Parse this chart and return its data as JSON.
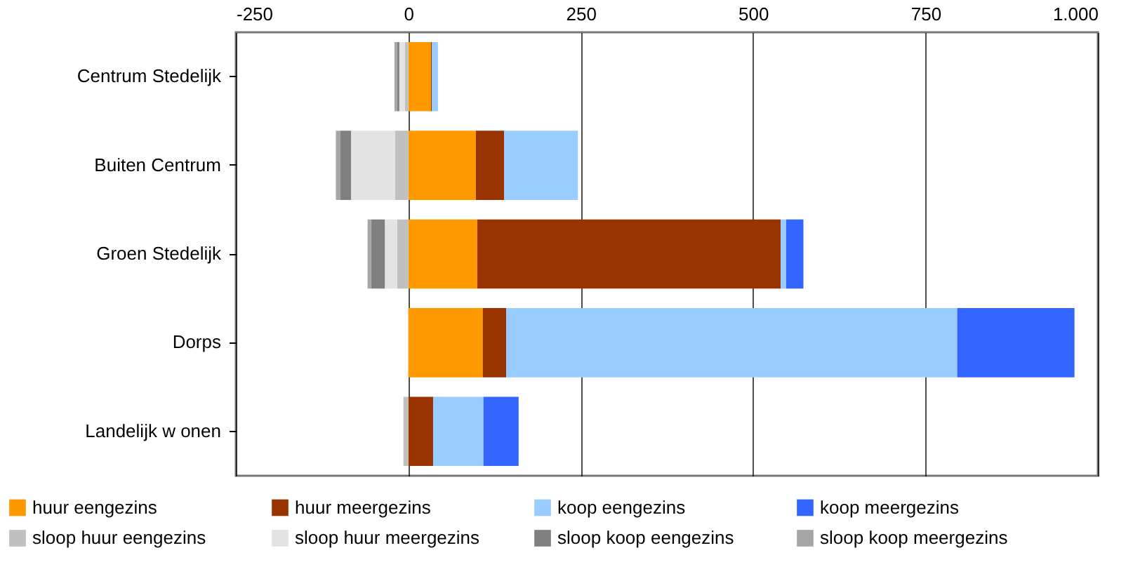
{
  "chart_data": {
    "type": "bar",
    "orientation": "horizontal",
    "stacked": true,
    "categories": [
      "Centrum Stedelijk",
      "Buiten Centrum",
      "Groen Stedelijk",
      "Dorps",
      "Landelijk w onen"
    ],
    "series": [
      {
        "name": "huur eengezins",
        "color": "#ff9900",
        "values": [
          33,
          98,
          100,
          108,
          0
        ]
      },
      {
        "name": "huur meergezins",
        "color": "#993300",
        "values": [
          1,
          41,
          440,
          34,
          36
        ]
      },
      {
        "name": "koop eengezins",
        "color": "#99ccff",
        "values": [
          9,
          107,
          8,
          654,
          73
        ]
      },
      {
        "name": "koop meergezins",
        "color": "#3366ff",
        "values": [
          0,
          0,
          25,
          170,
          51
        ]
      },
      {
        "name": "sloop huur eengezins",
        "color": "#c0c0c0",
        "values": [
          -5,
          -19,
          -16,
          0,
          -7
        ]
      },
      {
        "name": "sloop huur meergezins",
        "color": "#e3e3e3",
        "values": [
          -8,
          -64,
          -18,
          0,
          0
        ]
      },
      {
        "name": "sloop koop eengezins",
        "color": "#808080",
        "values": [
          -3,
          -16,
          -20,
          0,
          0
        ]
      },
      {
        "name": "sloop koop meergezins",
        "color": "#a6a6a6",
        "values": [
          -4,
          -6,
          -5,
          0,
          0
        ]
      }
    ],
    "xlim": [
      -250,
      1000
    ],
    "xticks": [
      -250,
      0,
      250,
      500,
      750,
      {
        "value": 1000,
        "label": "1.000"
      }
    ],
    "grid": "x",
    "legend": "bottom"
  }
}
